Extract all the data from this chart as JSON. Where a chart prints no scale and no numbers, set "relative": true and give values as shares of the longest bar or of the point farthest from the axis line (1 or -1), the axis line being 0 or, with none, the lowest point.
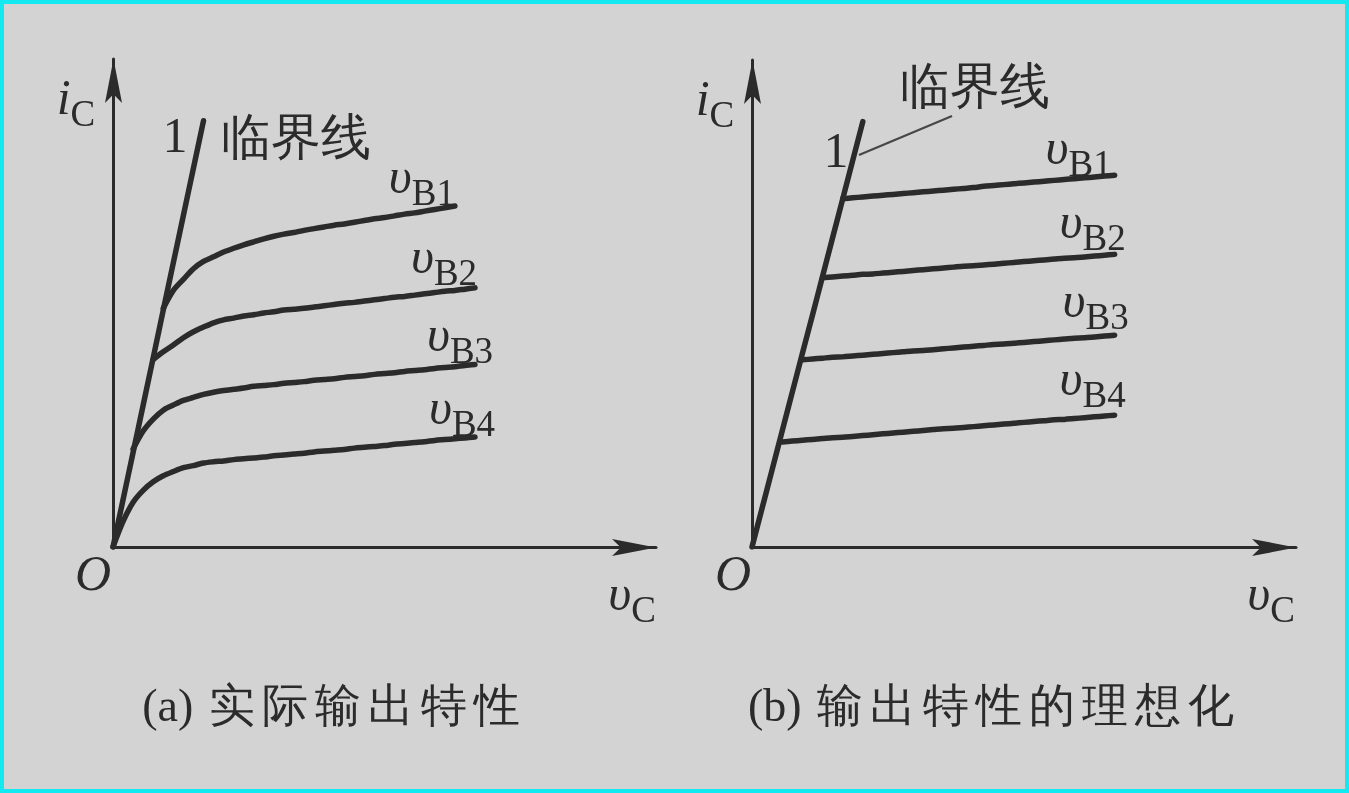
{
  "chart_data": [
    {
      "type": "line",
      "title": "(a) 实际输出特性",
      "xlabel": "υ$_{C}$",
      "ylabel": "i$_{C}$",
      "relative": true,
      "legend": false,
      "grid": false,
      "marker": "none",
      "line_style": "solid",
      "categories": [
        null,
        null,
        null,
        null,
        null,
        null,
        null,
        null,
        null,
        null,
        null,
        null,
        null,
        null,
        null,
        null,
        null,
        null,
        null,
        null,
        null,
        null,
        null,
        null,
        null,
        null,
        null,
        null,
        null,
        null,
        null,
        null,
        null,
        null,
        null,
        null,
        null,
        null,
        null,
        null,
        null,
        null,
        null,
        null,
        null,
        null,
        null,
        null,
        null,
        null,
        null,
        null,
        null,
        null,
        null
      ],
      "series": [
        {
          "name": "临界线",
          "color": "#2b2b2b",
          "values": [
            0,
            0.111,
            0.222,
            0.333,
            0.444,
            0.556,
            0.667,
            0.778,
            0.889,
            1,
            null,
            null,
            null,
            null,
            null,
            null,
            null,
            null,
            null,
            null,
            null,
            null,
            null,
            null,
            null,
            null,
            null,
            null,
            null,
            null,
            null,
            null,
            null,
            null,
            null,
            null,
            null,
            null,
            null,
            null,
            null,
            null,
            null,
            null,
            null,
            null,
            null,
            null,
            null,
            null,
            null,
            null,
            null,
            null,
            null
          ]
        },
        {
          "name": "υ$_{B1}$",
          "color": "#2b2b2b",
          "values": [
            null,
            null,
            null,
            null,
            null,
            0.56,
            0.602,
            0.628,
            0.653,
            0.67,
            0.681,
            0.692,
            0.701,
            0.709,
            0.716,
            0.723,
            0.729,
            0.734,
            0.738,
            0.743,
            0.747,
            0.751,
            0.755,
            0.758,
            0.762,
            0.766,
            0.77,
            0.773,
            0.777,
            0.781,
            0.784,
            0.788,
            0.792,
            0.796,
            0.8,
            null,
            null,
            null,
            null,
            null,
            null,
            null,
            null,
            null,
            null,
            null,
            null,
            null,
            null,
            null,
            null,
            null,
            null,
            null,
            null
          ]
        },
        {
          "name": "υ$_{B2}$",
          "color": "#2b2b2b",
          "values": [
            null,
            null,
            null,
            null,
            0.44,
            0.458,
            0.474,
            0.491,
            0.505,
            0.516,
            0.526,
            0.533,
            0.537,
            0.542,
            0.545,
            0.549,
            0.552,
            0.556,
            0.558,
            0.56,
            0.563,
            0.566,
            0.569,
            0.572,
            0.574,
            0.577,
            0.58,
            0.583,
            0.586,
            0.588,
            0.591,
            0.594,
            0.597,
            0.6,
            0.602,
            0.605,
            0.608,
            null,
            null,
            null,
            null,
            null,
            null,
            null,
            null,
            null,
            null,
            null,
            null,
            null,
            null,
            null,
            null,
            null,
            null
          ]
        },
        {
          "name": "υ$_{B3}$",
          "color": "#2b2b2b",
          "values": [
            null,
            null,
            0.23,
            0.272,
            0.3,
            0.321,
            0.333,
            0.344,
            0.351,
            0.358,
            0.363,
            0.367,
            0.37,
            0.373,
            0.377,
            0.379,
            0.381,
            0.384,
            0.386,
            0.388,
            0.391,
            0.393,
            0.395,
            0.398,
            0.4,
            0.402,
            0.405,
            0.407,
            0.409,
            0.412,
            0.414,
            0.416,
            0.419,
            0.421,
            0.423,
            0.426,
            0.428,
            null,
            null,
            null,
            null,
            null,
            null,
            null,
            null,
            null,
            null,
            null,
            null,
            null,
            null,
            null,
            null,
            null,
            null
          ]
        },
        {
          "name": "υ$_{B4}$",
          "color": "#2b2b2b",
          "values": [
            0,
            0.06,
            0.105,
            0.133,
            0.153,
            0.167,
            0.177,
            0.186,
            0.191,
            0.197,
            0.2,
            0.202,
            0.205,
            0.207,
            0.209,
            0.211,
            0.214,
            0.216,
            0.218,
            0.22,
            0.223,
            0.225,
            0.227,
            0.229,
            0.232,
            0.234,
            0.236,
            0.238,
            0.241,
            0.243,
            0.245,
            0.247,
            0.25,
            0.252,
            0.254,
            0.256,
            0.258,
            null,
            null,
            null,
            null,
            null,
            null,
            null,
            null,
            null,
            null,
            null,
            null,
            null,
            null,
            null,
            null,
            null,
            null
          ]
        }
      ],
      "annotations": [
        "1",
        "O"
      ]
    },
    {
      "type": "line",
      "title": "(b) 输出特性的理想化",
      "xlabel": "υ$_{C}$",
      "ylabel": "i$_{C}$",
      "relative": true,
      "legend": false,
      "grid": false,
      "marker": "none",
      "line_style": "solid",
      "categories": [
        null,
        null,
        null,
        null,
        null,
        null,
        null,
        null,
        null,
        null,
        null,
        null,
        null,
        null,
        null,
        null,
        null,
        null,
        null,
        null,
        null,
        null,
        null,
        null,
        null,
        null,
        null,
        null,
        null,
        null,
        null,
        null,
        null,
        null,
        null,
        null,
        null,
        null,
        null,
        null,
        null,
        null,
        null,
        null,
        null,
        null,
        null,
        null,
        null,
        null,
        null,
        null,
        null,
        null,
        null
      ],
      "series": [
        {
          "name": "临界线",
          "color": "#2b2b2b",
          "values": [
            0,
            0.091,
            0.182,
            0.273,
            0.364,
            0.455,
            0.545,
            0.636,
            0.727,
            0.818,
            0.909,
            1,
            null,
            null,
            null,
            null,
            null,
            null,
            null,
            null,
            null,
            null,
            null,
            null,
            null,
            null,
            null,
            null,
            null,
            null,
            null,
            null,
            null,
            null,
            null,
            null,
            null,
            null,
            null,
            null,
            null,
            null,
            null,
            null,
            null,
            null,
            null,
            null,
            null,
            null,
            null,
            null,
            null,
            null,
            null
          ]
        },
        {
          "name": "υ$_{B1}$",
          "color": "#2b2b2b",
          "values": [
            null,
            null,
            null,
            null,
            null,
            null,
            null,
            null,
            null,
            0.819,
            0.821,
            0.823,
            0.825,
            0.827,
            0.829,
            0.831,
            0.833,
            0.835,
            0.837,
            0.839,
            0.841,
            0.843,
            0.845,
            0.848,
            0.85,
            0.852,
            0.854,
            0.856,
            0.858,
            0.86,
            0.862,
            0.864,
            0.866,
            0.868,
            0.87,
            0.872,
            0.874,
            null,
            null,
            null,
            null,
            null,
            null,
            null,
            null,
            null,
            null,
            null,
            null,
            null,
            null,
            null,
            null,
            null,
            null
          ]
        },
        {
          "name": "υ$_{B2}$",
          "color": "#2b2b2b",
          "values": [
            null,
            null,
            null,
            null,
            null,
            null,
            null,
            0.633,
            0.635,
            0.637,
            0.639,
            0.641,
            0.642,
            0.644,
            0.646,
            0.648,
            0.65,
            0.652,
            0.654,
            0.656,
            0.658,
            0.66,
            0.661,
            0.663,
            0.665,
            0.667,
            0.669,
            0.671,
            0.673,
            0.675,
            0.677,
            0.679,
            0.68,
            0.682,
            0.684,
            0.686,
            0.688,
            null,
            null,
            null,
            null,
            null,
            null,
            null,
            null,
            null,
            null,
            null,
            null,
            null,
            null,
            null,
            null,
            null,
            null
          ]
        },
        {
          "name": "υ$_{B3}$",
          "color": "#2b2b2b",
          "values": [
            null,
            null,
            null,
            null,
            null,
            0.44,
            0.442,
            0.444,
            0.446,
            0.447,
            0.449,
            0.451,
            0.453,
            0.455,
            0.457,
            0.459,
            0.461,
            0.462,
            0.464,
            0.466,
            0.468,
            0.47,
            0.472,
            0.474,
            0.476,
            0.477,
            0.479,
            0.481,
            0.483,
            0.485,
            0.487,
            0.489,
            0.491,
            0.492,
            0.494,
            0.496,
            0.498,
            null,
            null,
            null,
            null,
            null,
            null,
            null,
            null,
            null,
            null,
            null,
            null,
            null,
            null,
            null,
            null,
            null,
            null
          ]
        },
        {
          "name": "υ$_{B4}$",
          "color": "#2b2b2b",
          "values": [
            null,
            null,
            null,
            0.247,
            0.249,
            0.251,
            0.253,
            0.255,
            0.257,
            0.258,
            0.26,
            0.262,
            0.264,
            0.266,
            0.268,
            0.27,
            0.272,
            0.274,
            0.276,
            0.278,
            0.279,
            0.281,
            0.283,
            0.285,
            0.287,
            0.289,
            0.291,
            0.293,
            0.295,
            0.297,
            0.299,
            0.3,
            0.302,
            0.304,
            0.306,
            0.308,
            0.31,
            null,
            null,
            null,
            null,
            null,
            null,
            null,
            null,
            null,
            null,
            null,
            null,
            null,
            null,
            null,
            null,
            null,
            null
          ]
        }
      ],
      "annotations": [
        "1",
        "O"
      ]
    }
  ]
}
